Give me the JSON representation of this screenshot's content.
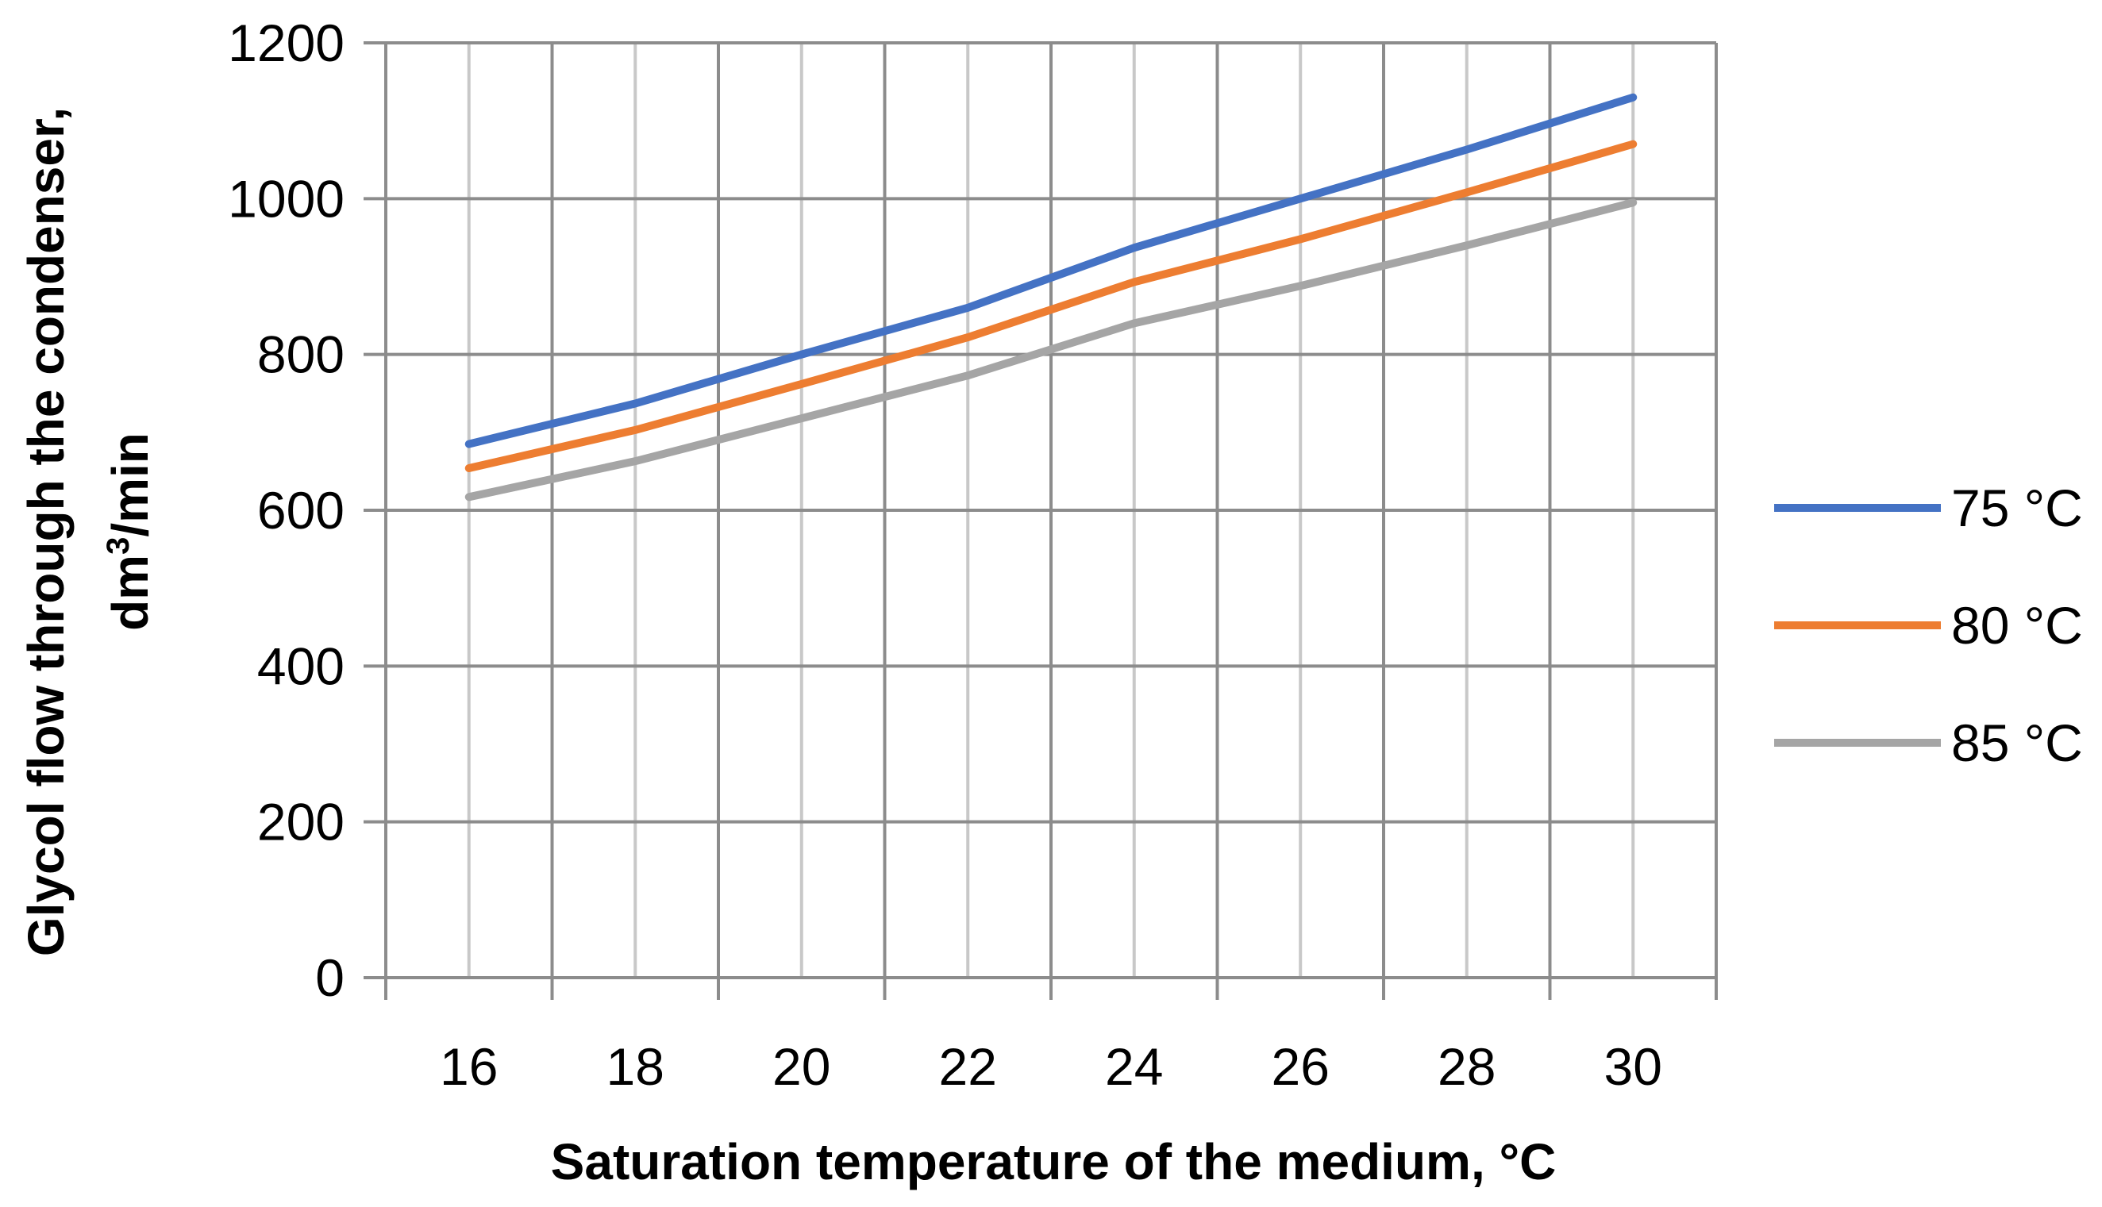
{
  "chart_data": {
    "type": "line",
    "title": "",
    "xlabel": "Saturation temperature of the medium, °C",
    "ylabel_line1": "Glycol flow through the condenser,",
    "ylabel_unit_main": "dm",
    "ylabel_unit_sup": "3",
    "ylabel_unit_tail": "/min",
    "x": [
      16,
      18,
      20,
      22,
      24,
      26,
      28,
      30
    ],
    "x_ticks": [
      "16",
      "18",
      "20",
      "22",
      "24",
      "26",
      "28",
      "30"
    ],
    "y_ticks": [
      "0",
      "200",
      "400",
      "600",
      "800",
      "1000",
      "1200"
    ],
    "y_tick_values": [
      0,
      200,
      400,
      600,
      800,
      1000,
      1200
    ],
    "ylim": [
      0,
      1200
    ],
    "grid": true,
    "legend_position": "right",
    "series": [
      {
        "name": "75 °C",
        "color": "#4472C4",
        "values": [
          685,
          737,
          800,
          860,
          937,
          1000,
          1063,
          1130
        ]
      },
      {
        "name": "80 °C",
        "color": "#ED7D31",
        "values": [
          654,
          703,
          762,
          822,
          893,
          948,
          1008,
          1070
        ]
      },
      {
        "name": "85 °C",
        "color": "#A5A5A5",
        "values": [
          617,
          663,
          718,
          773,
          840,
          888,
          940,
          995
        ]
      }
    ]
  }
}
